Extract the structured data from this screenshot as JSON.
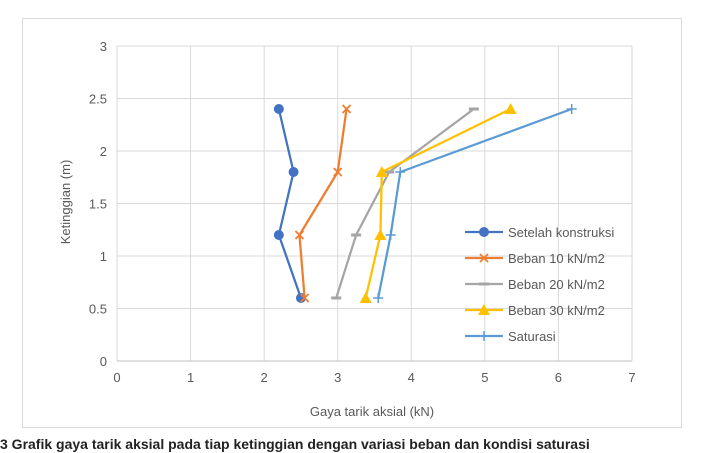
{
  "chart_data": {
    "type": "line",
    "title": "",
    "xlabel": "Gaya tarik aksial (kN)",
    "ylabel": "Ketinggian (m)",
    "xlim": [
      0,
      7
    ],
    "ylim": [
      0,
      3
    ],
    "xticks": [
      "0",
      "1",
      "2",
      "3",
      "4",
      "5",
      "6",
      "7"
    ],
    "yticks": [
      "0",
      "0.5",
      "1",
      "1.5",
      "2",
      "2.5",
      "3"
    ],
    "grid": true,
    "legend_position": "right",
    "series": [
      {
        "name": "Setelah konstruksi",
        "color": "#4472c4",
        "marker": "circle",
        "points": [
          [
            2.5,
            0.6
          ],
          [
            2.2,
            1.2
          ],
          [
            2.4,
            1.8
          ],
          [
            2.2,
            2.4
          ]
        ]
      },
      {
        "name": "Beban 10 kN/m2",
        "color": "#ed7d31",
        "marker": "x",
        "points": [
          [
            2.55,
            0.6
          ],
          [
            2.48,
            1.2
          ],
          [
            3.0,
            1.8
          ],
          [
            3.12,
            2.4
          ]
        ]
      },
      {
        "name": "Beban 20 kN/m2",
        "color": "#a5a5a5",
        "marker": "dash",
        "points": [
          [
            2.98,
            0.6
          ],
          [
            3.25,
            1.2
          ],
          [
            3.7,
            1.8
          ],
          [
            4.85,
            2.4
          ]
        ]
      },
      {
        "name": "Beban 30 kN/m2",
        "color": "#ffc000",
        "marker": "triangle",
        "points": [
          [
            3.38,
            0.6
          ],
          [
            3.58,
            1.2
          ],
          [
            3.6,
            1.8
          ],
          [
            5.35,
            2.4
          ]
        ]
      },
      {
        "name": "Saturasi",
        "color": "#5b9bd5",
        "marker": "plus",
        "points": [
          [
            3.55,
            0.6
          ],
          [
            3.72,
            1.2
          ],
          [
            3.85,
            1.8
          ],
          [
            6.18,
            2.4
          ]
        ]
      }
    ]
  },
  "caption": "3  Grafik gaya tarik aksial pada tiap ketinggian dengan variasi beban dan kondisi saturasi"
}
